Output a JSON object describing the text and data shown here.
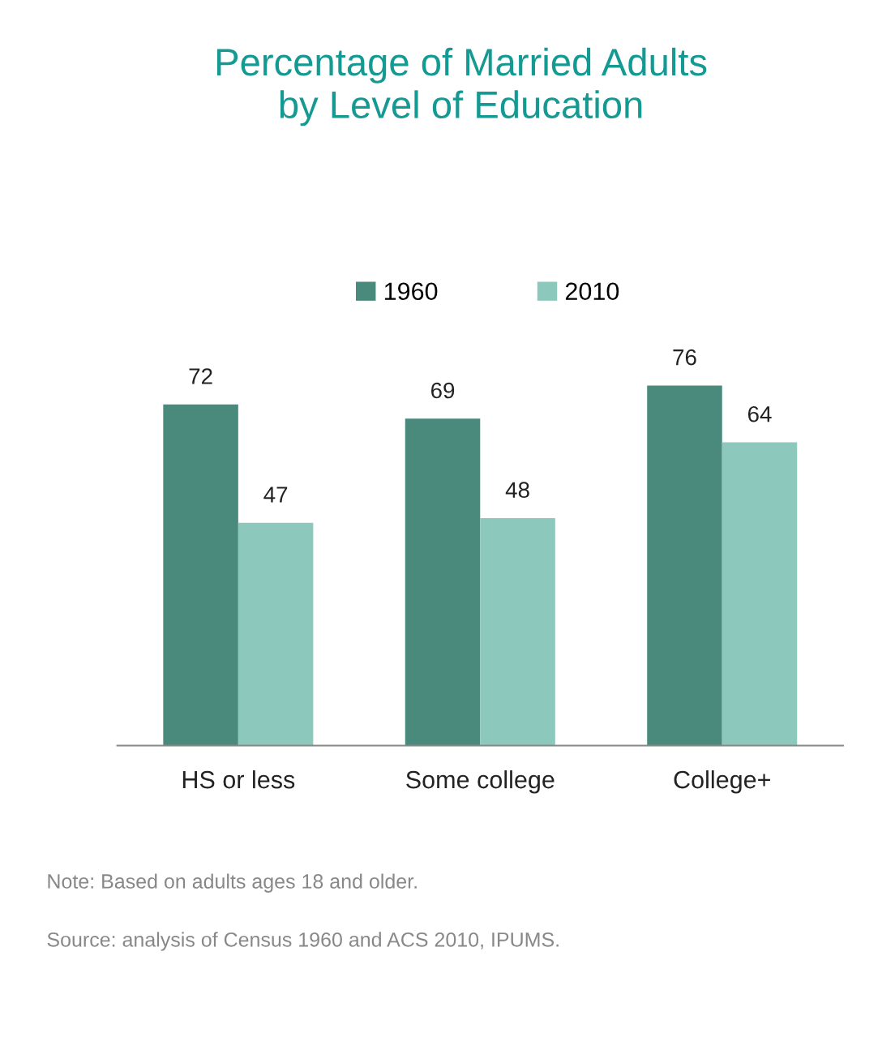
{
  "chart_data": {
    "type": "bar",
    "title": "Percentage of Married Adults\nby Level of Education",
    "categories": [
      "HS or less",
      "Some college",
      "College+"
    ],
    "series": [
      {
        "name": "1960",
        "color": "#4a8a7c",
        "values": [
          72,
          69,
          76
        ]
      },
      {
        "name": "2010",
        "color": "#8cc8bc",
        "values": [
          47,
          48,
          64
        ]
      }
    ],
    "data_labels": true,
    "legend": "top",
    "grid": false,
    "annotations": [
      "Note: Based on adults ages 18 and older.",
      "Source: analysis of Census 1960 and ACS 2010, IPUMS."
    ]
  }
}
